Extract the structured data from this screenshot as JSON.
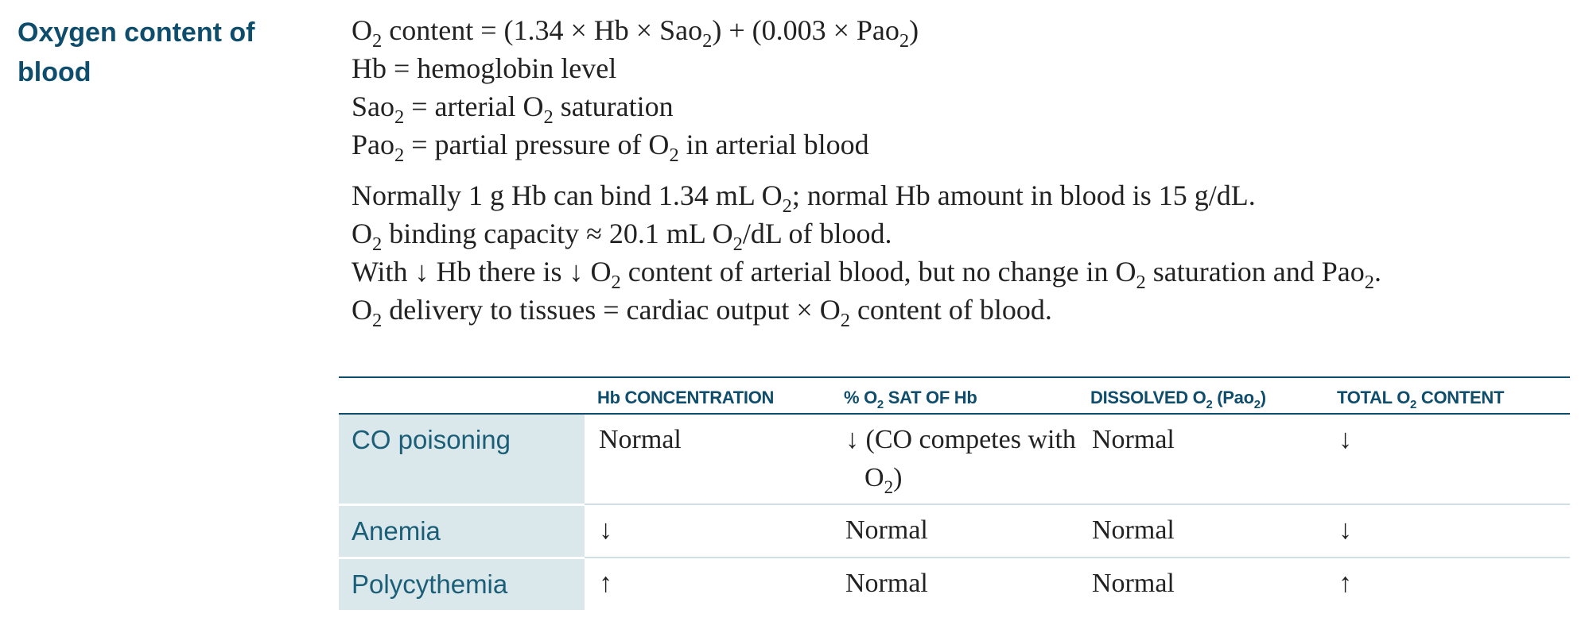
{
  "heading": "Oxygen content of blood",
  "definitions": [
    [
      {
        "t": "O"
      },
      {
        "s": "2"
      },
      {
        "t": " content = (1.34 × Hb × Sao"
      },
      {
        "s": "2"
      },
      {
        "t": ") + (0.003 × Pao"
      },
      {
        "s": "2"
      },
      {
        "t": ")"
      }
    ],
    [
      {
        "t": "Hb = hemoglobin level"
      }
    ],
    [
      {
        "t": "Sao"
      },
      {
        "s": "2"
      },
      {
        "t": " = arterial O"
      },
      {
        "s": "2"
      },
      {
        "t": " saturation"
      }
    ],
    [
      {
        "t": "Pao"
      },
      {
        "s": "2"
      },
      {
        "t": " = partial pressure of O"
      },
      {
        "s": "2"
      },
      {
        "t": " in arterial blood"
      }
    ]
  ],
  "notes": [
    [
      {
        "t": "Normally 1 g Hb can bind 1.34 mL O"
      },
      {
        "s": "2"
      },
      {
        "t": "; normal Hb amount in blood is 15 g/dL."
      }
    ],
    [
      {
        "t": "O"
      },
      {
        "s": "2"
      },
      {
        "t": " binding capacity ≈ 20.1 mL O"
      },
      {
        "s": "2"
      },
      {
        "t": "/dL of blood."
      }
    ],
    [
      {
        "t": "With ↓ Hb there is ↓ O"
      },
      {
        "s": "2"
      },
      {
        "t": " content of arterial blood, but no change in O"
      },
      {
        "s": "2"
      },
      {
        "t": " saturation and Pao"
      },
      {
        "s": "2"
      },
      {
        "t": "."
      }
    ],
    [
      {
        "t": "O"
      },
      {
        "s": "2"
      },
      {
        "t": " delivery to tissues = cardiac output × O"
      },
      {
        "s": "2"
      },
      {
        "t": " content of blood."
      }
    ]
  ],
  "table": {
    "headers": [
      [],
      [
        {
          "t": "Hb CONCENTRATION"
        }
      ],
      [
        {
          "t": "% O"
        },
        {
          "s": "2"
        },
        {
          "t": " SAT OF Hb"
        }
      ],
      [
        {
          "t": "DISSOLVED O"
        },
        {
          "s": "2"
        },
        {
          "t": " (Pao"
        },
        {
          "s": "2"
        },
        {
          "t": ")"
        }
      ],
      [
        {
          "t": "TOTAL O"
        },
        {
          "s": "2"
        },
        {
          "t": " CONTENT"
        }
      ]
    ],
    "rows": [
      {
        "label": "CO poisoning",
        "cells": [
          [
            {
              "t": "Normal"
            }
          ],
          [
            {
              "t": "↓ (CO competes with O"
            },
            {
              "s": "2"
            },
            {
              "t": ")"
            }
          ],
          [
            {
              "t": "Normal"
            }
          ],
          [
            {
              "t": "↓"
            }
          ]
        ]
      },
      {
        "label": "Anemia",
        "cells": [
          [
            {
              "t": "↓"
            }
          ],
          [
            {
              "t": "Normal"
            }
          ],
          [
            {
              "t": "Normal"
            }
          ],
          [
            {
              "t": "↓"
            }
          ]
        ]
      },
      {
        "label": "Polycythemia",
        "cells": [
          [
            {
              "t": "↑"
            }
          ],
          [
            {
              "t": "Normal"
            }
          ],
          [
            {
              "t": "Normal"
            }
          ],
          [
            {
              "t": "↑"
            }
          ]
        ]
      }
    ]
  }
}
